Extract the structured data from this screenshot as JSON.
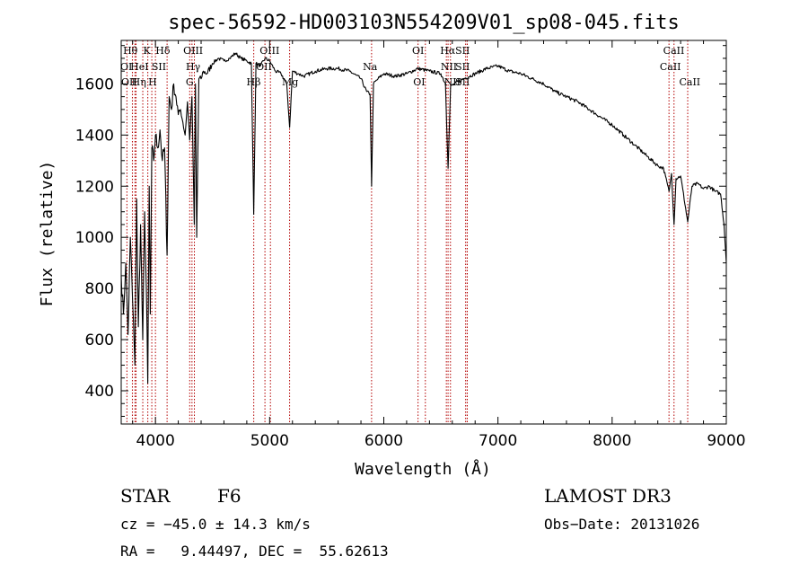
{
  "chart_data": {
    "type": "line",
    "title": "spec-56592-HD003103N554209V01_sp08-045.fits",
    "xlabel": "Wavelength (Å)",
    "ylabel": "Flux (relative)",
    "xlim": [
      3700,
      9000
    ],
    "ylim": [
      270,
      1770
    ],
    "x_ticks": [
      4000,
      5000,
      6000,
      7000,
      8000,
      9000
    ],
    "y_ticks": [
      400,
      600,
      800,
      1000,
      1200,
      1400,
      1600
    ],
    "series": [
      {
        "name": "spectrum",
        "x": [
          3700,
          3720,
          3740,
          3760,
          3780,
          3800,
          3820,
          3835,
          3850,
          3870,
          3889,
          3905,
          3920,
          3933,
          3945,
          3955,
          3968,
          3985,
          4000,
          4020,
          4040,
          4060,
          4080,
          4102,
          4120,
          4140,
          4160,
          4180,
          4200,
          4220,
          4240,
          4260,
          4280,
          4300,
          4320,
          4340,
          4350,
          4361,
          4380,
          4400,
          4420,
          4450,
          4500,
          4550,
          4600,
          4650,
          4700,
          4750,
          4800,
          4840,
          4861,
          4880,
          4920,
          4960,
          5000,
          5050,
          5100,
          5150,
          5175,
          5200,
          5250,
          5300,
          5400,
          5500,
          5600,
          5700,
          5800,
          5850,
          5880,
          5893,
          5910,
          5950,
          6000,
          6100,
          6200,
          6300,
          6400,
          6500,
          6540,
          6563,
          6585,
          6620,
          6700,
          6800,
          6900,
          7000,
          7100,
          7200,
          7300,
          7400,
          7500,
          7600,
          7700,
          7800,
          7900,
          8000,
          8100,
          8200,
          8300,
          8400,
          8450,
          8498,
          8520,
          8542,
          8560,
          8600,
          8662,
          8700,
          8750,
          8800,
          8850,
          8900,
          8950,
          8980,
          9000
        ],
        "y": [
          850,
          700,
          900,
          620,
          1000,
          750,
          500,
          1150,
          650,
          1050,
          600,
          1100,
          800,
          430,
          1200,
          700,
          1350,
          1300,
          1400,
          1350,
          1420,
          1300,
          1350,
          930,
          1550,
          1500,
          1600,
          1550,
          1480,
          1500,
          1450,
          1400,
          1530,
          1380,
          1550,
          1050,
          1600,
          1000,
          1620,
          1620,
          1650,
          1640,
          1680,
          1700,
          1690,
          1700,
          1720,
          1700,
          1690,
          1680,
          1090,
          1680,
          1670,
          1700,
          1690,
          1650,
          1640,
          1600,
          1430,
          1650,
          1640,
          1630,
          1650,
          1660,
          1660,
          1650,
          1620,
          1570,
          1560,
          1200,
          1600,
          1620,
          1640,
          1630,
          1640,
          1660,
          1650,
          1640,
          1600,
          1270,
          1590,
          1600,
          1620,
          1640,
          1660,
          1670,
          1650,
          1640,
          1620,
          1600,
          1570,
          1550,
          1530,
          1500,
          1470,
          1440,
          1400,
          1360,
          1320,
          1280,
          1270,
          1180,
          1250,
          1050,
          1230,
          1240,
          1060,
          1200,
          1210,
          1190,
          1200,
          1180,
          1170,
          1050,
          900
        ]
      }
    ],
    "spectral_lines": [
      {
        "wl": 3750,
        "label": "Hθ",
        "label_wl": 3780,
        "row": 0
      },
      {
        "wl": 3798,
        "label": "Hη",
        "label_wl": 3855,
        "row": 2
      },
      {
        "wl": 3820,
        "label": "OII",
        "label_wl": 3770,
        "row": 2
      },
      {
        "wl": 3830,
        "label": "OI",
        "label_wl": 3745,
        "row": 1
      },
      {
        "wl": 3889,
        "label": "HeI",
        "label_wl": 3860,
        "row": 1
      },
      {
        "wl": 3933,
        "label": "K",
        "label_wl": 3925,
        "row": 0
      },
      {
        "wl": 3968,
        "label": "H",
        "label_wl": 3975,
        "row": 2
      },
      {
        "wl": 4000,
        "label": "SII",
        "label_wl": 4030,
        "row": 1
      },
      {
        "wl": 4102,
        "label": "Hδ",
        "label_wl": 4065,
        "row": 0
      },
      {
        "wl": 4300,
        "label": "G",
        "label_wl": 4300,
        "row": 2
      },
      {
        "wl": 4320,
        "label": "OIII",
        "label_wl": 4330,
        "row": 0
      },
      {
        "wl": 4341,
        "label": "Hγ",
        "label_wl": 4330,
        "row": 1
      },
      {
        "wl": 4861,
        "label": "Hβ",
        "label_wl": 4860,
        "row": 2
      },
      {
        "wl": 4959,
        "label": "OIII",
        "label_wl": 5000,
        "row": 0
      },
      {
        "wl": 5007,
        "label": "OII",
        "label_wl": 4950,
        "row": 1
      },
      {
        "wl": 5175,
        "label": "Mg",
        "label_wl": 5180,
        "row": 2
      },
      {
        "wl": 5893,
        "label": "Na",
        "label_wl": 5880,
        "row": 1
      },
      {
        "wl": 6300,
        "label": "OI",
        "label_wl": 6300,
        "row": 0
      },
      {
        "wl": 6364,
        "label": "OI",
        "label_wl": 6310,
        "row": 2
      },
      {
        "wl": 6548,
        "label": "NII",
        "label_wl": 6570,
        "row": 1
      },
      {
        "wl": 6563,
        "label": "Hα",
        "label_wl": 6560,
        "row": 0
      },
      {
        "wl": 6584,
        "label": "NII",
        "label_wl": 6600,
        "row": 2
      },
      {
        "wl": 6717,
        "label": "SII",
        "label_wl": 6690,
        "row": 1
      },
      {
        "wl": 6731,
        "label": "SII",
        "label_wl": 6690,
        "row": 0
      },
      {
        "wl": 6731,
        "label": "SII",
        "label_wl": 6690,
        "row": 2
      },
      {
        "wl": 8498,
        "label": "CaII",
        "label_wl": 8540,
        "row": 0
      },
      {
        "wl": 8542,
        "label": "CaII",
        "label_wl": 8510,
        "row": 1
      },
      {
        "wl": 8662,
        "label": "CaII",
        "label_wl": 8680,
        "row": 2
      }
    ],
    "colors": {
      "spectrum": "#000000",
      "lines": "#b30000",
      "frame": "#000000"
    }
  },
  "info": {
    "class_label": "STAR",
    "subclass": "F6",
    "survey": "LAMOST DR3",
    "cz_line": "cz = −45.0 ± 14.3 km/s",
    "obs_date": "Obs−Date: 20131026",
    "radec_line": "RA =   9.44497, DEC =  55.62613"
  }
}
